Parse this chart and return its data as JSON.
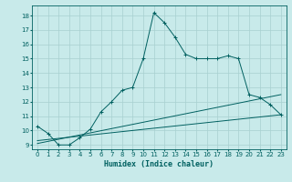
{
  "xlabel": "Humidex (Indice chaleur)",
  "bg_color": "#c8eaea",
  "grid_color": "#a8d0d0",
  "line_color": "#006060",
  "xlim": [
    -0.5,
    23.5
  ],
  "ylim": [
    8.7,
    18.7
  ],
  "yticks": [
    9,
    10,
    11,
    12,
    13,
    14,
    15,
    16,
    17,
    18
  ],
  "xticks": [
    0,
    1,
    2,
    3,
    4,
    5,
    6,
    7,
    8,
    9,
    10,
    11,
    12,
    13,
    14,
    15,
    16,
    17,
    18,
    19,
    20,
    21,
    22,
    23
  ],
  "curve1_x": [
    0,
    1,
    2,
    3,
    4,
    5,
    6,
    7,
    8,
    9,
    10,
    11,
    12,
    13,
    14,
    15,
    16,
    17,
    18,
    19,
    20,
    21,
    22,
    23
  ],
  "curve1_y": [
    10.3,
    9.8,
    9.0,
    9.0,
    9.5,
    10.1,
    11.3,
    12.0,
    12.8,
    13.0,
    15.0,
    18.2,
    17.5,
    16.5,
    15.3,
    15.0,
    15.0,
    15.0,
    15.2,
    15.0,
    12.5,
    12.3,
    11.8,
    11.1
  ],
  "curve2_x": [
    0,
    23
  ],
  "curve2_y": [
    9.1,
    12.5
  ],
  "curve3_x": [
    0,
    23
  ],
  "curve3_y": [
    9.3,
    11.1
  ]
}
